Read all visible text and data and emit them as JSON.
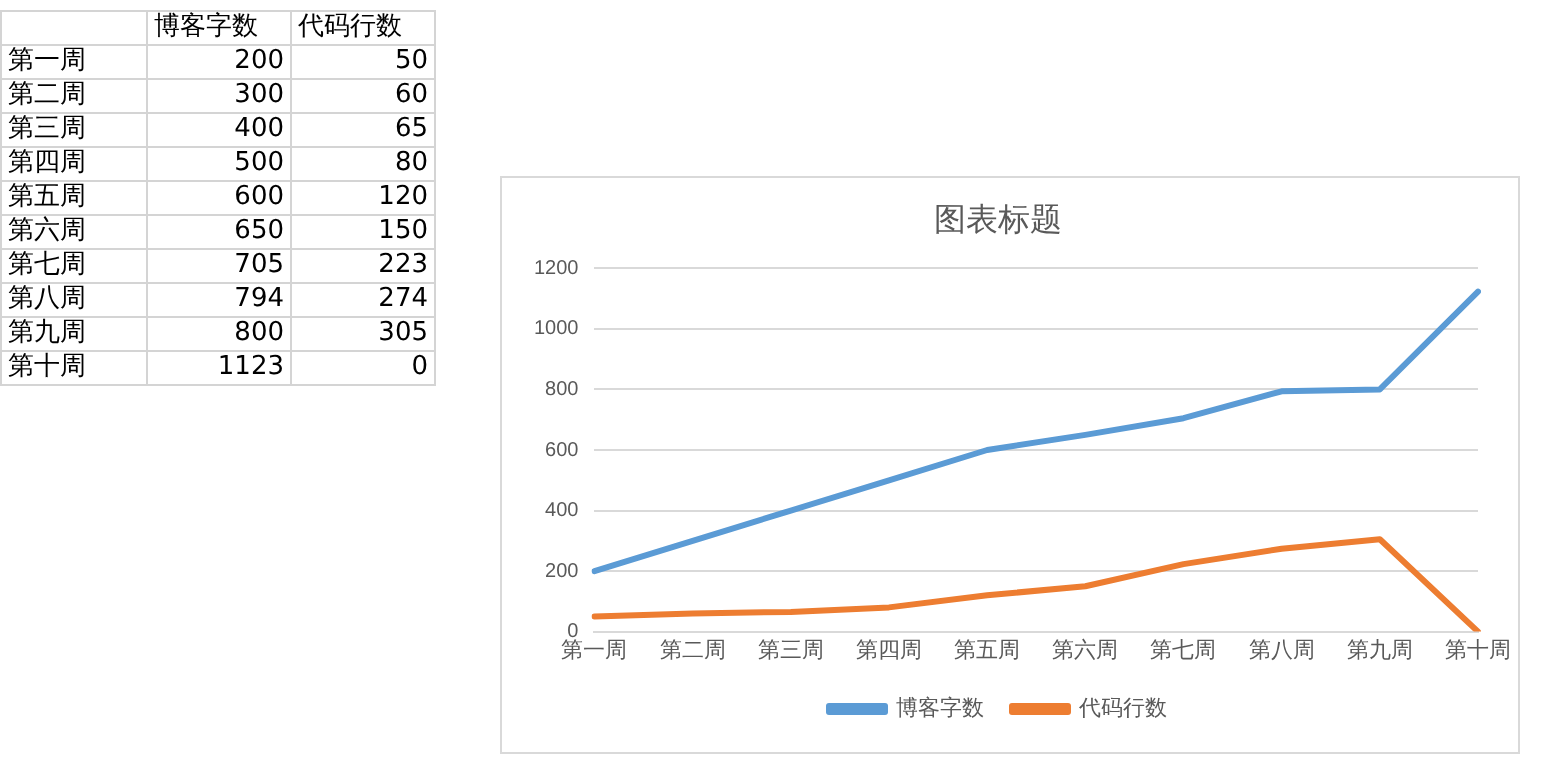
{
  "chart_data": [
    {
      "type": "other",
      "categories": [
        "第一周",
        "第二周",
        "第三周",
        "第四周",
        "第五周",
        "第六周",
        "第七周",
        "第八周",
        "第九周",
        "第十周"
      ],
      "series": [
        {
          "name": "博客字数",
          "values": [
            200,
            300,
            400,
            500,
            600,
            650,
            705,
            794,
            800,
            1123
          ]
        },
        {
          "name": "代码行数",
          "values": [
            50,
            60,
            65,
            80,
            120,
            150,
            223,
            274,
            305,
            0
          ]
        }
      ],
      "data_labels": true
    },
    {
      "type": "line",
      "title": "图表标题",
      "categories": [
        "第一周",
        "第二周",
        "第三周",
        "第四周",
        "第五周",
        "第六周",
        "第七周",
        "第八周",
        "第九周",
        "第十周"
      ],
      "series": [
        {
          "name": "博客字数",
          "color": "#5b9bd5",
          "values": [
            200,
            300,
            400,
            500,
            600,
            650,
            705,
            794,
            800,
            1123
          ]
        },
        {
          "name": "代码行数",
          "color": "#ed7d31",
          "values": [
            50,
            60,
            65,
            80,
            120,
            150,
            223,
            274,
            305,
            0
          ]
        }
      ],
      "ylim": [
        0,
        1200
      ],
      "yticks": [
        0,
        200,
        400,
        600,
        800,
        1000,
        1200
      ],
      "grid": "y",
      "legend": "bottom",
      "marker": "none"
    }
  ]
}
